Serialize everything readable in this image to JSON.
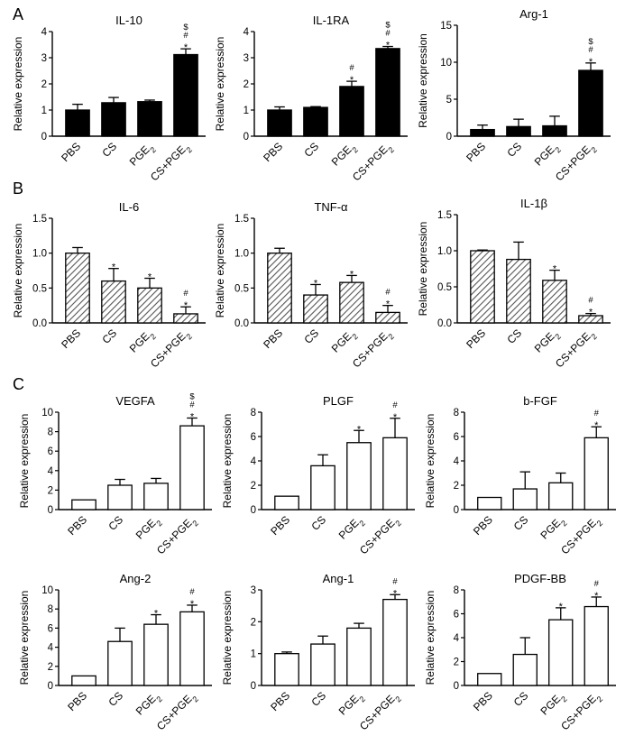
{
  "figure": {
    "colors": {
      "ink": "#000000",
      "hatch": "#555555",
      "background": "#ffffff"
    }
  },
  "chart_data": [
    {
      "panel_label": "A",
      "type": "bar",
      "style": "solid",
      "title": "IL-10",
      "ylabel": "Relative expression",
      "categories": [
        "PBS",
        "CS",
        "PGE2",
        "CS+PGE2"
      ],
      "values": [
        1.0,
        1.28,
        1.32,
        3.12
      ],
      "errors": [
        0.22,
        0.2,
        0.06,
        0.22
      ],
      "annotations": [
        [],
        [],
        [],
        [
          "*",
          "#",
          "$"
        ]
      ],
      "ylim": [
        0,
        4
      ],
      "yticks": [
        0,
        1,
        2,
        3,
        4
      ]
    },
    {
      "type": "bar",
      "style": "solid",
      "title": "IL-1RA",
      "ylabel": "Relative expression",
      "categories": [
        "PBS",
        "CS",
        "PGE2",
        "CS+PGE2"
      ],
      "values": [
        1.0,
        1.1,
        1.9,
        3.35
      ],
      "errors": [
        0.12,
        0.03,
        0.2,
        0.08
      ],
      "annotations": [
        [],
        [],
        [
          "*",
          "#"
        ],
        [
          "*",
          "#",
          "$"
        ]
      ],
      "ylim": [
        0,
        4
      ],
      "yticks": [
        0,
        1,
        2,
        3,
        4
      ]
    },
    {
      "type": "bar",
      "style": "solid",
      "title": "Arg-1",
      "ylabel": "Relative expression",
      "categories": [
        "PBS",
        "CS",
        "PGE2",
        "CS+PGE2"
      ],
      "values": [
        0.9,
        1.3,
        1.4,
        8.9
      ],
      "errors": [
        0.6,
        1.0,
        1.3,
        1.0
      ],
      "annotations": [
        [],
        [],
        [],
        [
          "*",
          "#",
          "$"
        ]
      ],
      "ylim": [
        0,
        15
      ],
      "yticks": [
        0,
        5,
        10,
        15
      ]
    },
    {
      "panel_label": "B",
      "type": "bar",
      "style": "hatched",
      "title": "IL-6",
      "ylabel": "Relative expression",
      "categories": [
        "PBS",
        "CS",
        "PGE2",
        "CS+PGE2"
      ],
      "values": [
        1.0,
        0.6,
        0.5,
        0.13
      ],
      "errors": [
        0.08,
        0.18,
        0.14,
        0.1
      ],
      "annotations": [
        [],
        [
          "*"
        ],
        [
          "*"
        ],
        [
          "*",
          "#"
        ]
      ],
      "ylim": [
        0,
        1.5
      ],
      "yticks": [
        0.0,
        0.5,
        1.0,
        1.5
      ]
    },
    {
      "type": "bar",
      "style": "hatched",
      "title": "TNF-α",
      "ylabel": "Relative expression",
      "categories": [
        "PBS",
        "CS",
        "PGE2",
        "CS+PGE2"
      ],
      "values": [
        1.0,
        0.4,
        0.58,
        0.15
      ],
      "errors": [
        0.07,
        0.15,
        0.1,
        0.1
      ],
      "annotations": [
        [],
        [
          "*"
        ],
        [
          "*"
        ],
        [
          "*",
          "#"
        ]
      ],
      "ylim": [
        0,
        1.5
      ],
      "yticks": [
        0.0,
        0.5,
        1.0,
        1.5
      ]
    },
    {
      "type": "bar",
      "style": "hatched",
      "title": "IL-1β",
      "ylabel": "Relative expression",
      "categories": [
        "PBS",
        "CS",
        "PGE2",
        "CS+PGE2"
      ],
      "values": [
        1.0,
        0.88,
        0.59,
        0.1
      ],
      "errors": [
        0.01,
        0.24,
        0.14,
        0.03
      ],
      "annotations": [
        [],
        [],
        [
          "*"
        ],
        [
          "*",
          "#"
        ]
      ],
      "ylim": [
        0,
        1.5
      ],
      "yticks": [
        0.0,
        0.5,
        1.0,
        1.5
      ]
    },
    {
      "panel_label": "C",
      "type": "bar",
      "style": "open",
      "title": "VEGFA",
      "ylabel": "Relative expression",
      "categories": [
        "PBS",
        "CS",
        "PGE2",
        "CS+PGE2"
      ],
      "values": [
        1.0,
        2.5,
        2.7,
        8.6
      ],
      "errors": [
        0.0,
        0.6,
        0.5,
        0.8
      ],
      "annotations": [
        [],
        [],
        [],
        [
          "*",
          "#",
          "$"
        ]
      ],
      "ylim": [
        0,
        10
      ],
      "yticks": [
        0,
        2,
        4,
        6,
        8,
        10
      ]
    },
    {
      "type": "bar",
      "style": "open",
      "title": "PLGF",
      "ylabel": "Relative expression",
      "categories": [
        "PBS",
        "CS",
        "PGE2",
        "CS+PGE2"
      ],
      "values": [
        1.1,
        3.6,
        5.5,
        5.9
      ],
      "errors": [
        0.0,
        0.9,
        1.0,
        1.6
      ],
      "annotations": [
        [],
        [],
        [
          "*"
        ],
        [
          "*",
          "#"
        ]
      ],
      "ylim": [
        0,
        8
      ],
      "yticks": [
        0,
        2,
        4,
        6,
        8
      ]
    },
    {
      "type": "bar",
      "style": "open",
      "title": "b-FGF",
      "ylabel": "Relative expression",
      "categories": [
        "PBS",
        "CS",
        "PGE2",
        "CS+PGE2"
      ],
      "values": [
        1.0,
        1.7,
        2.2,
        5.9
      ],
      "errors": [
        0.0,
        1.4,
        0.8,
        0.9
      ],
      "annotations": [
        [],
        [],
        [],
        [
          "*",
          "#"
        ]
      ],
      "ylim": [
        0,
        8
      ],
      "yticks": [
        0,
        2,
        4,
        6,
        8
      ]
    },
    {
      "type": "bar",
      "style": "open",
      "title": "Ang-2",
      "ylabel": "Relative expression",
      "categories": [
        "PBS",
        "CS",
        "PGE2",
        "CS+PGE2"
      ],
      "values": [
        1.0,
        4.6,
        6.4,
        7.7
      ],
      "errors": [
        0.0,
        1.4,
        1.0,
        0.7
      ],
      "annotations": [
        [],
        [],
        [
          "*"
        ],
        [
          "*",
          "#"
        ]
      ],
      "ylim": [
        0,
        10
      ],
      "yticks": [
        0,
        2,
        4,
        6,
        8,
        10
      ]
    },
    {
      "type": "bar",
      "style": "open",
      "title": "Ang-1",
      "ylabel": "Relative expression",
      "categories": [
        "PBS",
        "CS",
        "PGE2",
        "CS+PGE2"
      ],
      "values": [
        1.0,
        1.3,
        1.8,
        2.7
      ],
      "errors": [
        0.05,
        0.25,
        0.15,
        0.15
      ],
      "annotations": [
        [],
        [],
        [],
        [
          "*",
          "#"
        ]
      ],
      "ylim": [
        0,
        3
      ],
      "yticks": [
        0,
        1,
        2,
        3
      ]
    },
    {
      "type": "bar",
      "style": "open",
      "title": "PDGF-BB",
      "ylabel": "Relative expression",
      "categories": [
        "PBS",
        "CS",
        "PGE2",
        "CS+PGE2"
      ],
      "values": [
        1.0,
        2.6,
        5.5,
        6.6
      ],
      "errors": [
        0.0,
        1.4,
        1.0,
        0.8
      ],
      "annotations": [
        [],
        [],
        [
          "*"
        ],
        [
          "*",
          "#"
        ]
      ],
      "ylim": [
        0,
        8
      ],
      "yticks": [
        0,
        2,
        4,
        6,
        8
      ]
    }
  ]
}
